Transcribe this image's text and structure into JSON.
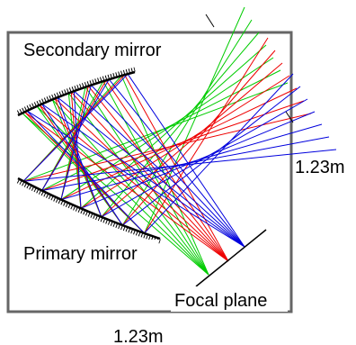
{
  "labels": {
    "secondary_mirror": "Secondary mirror",
    "primary_mirror": "Primary mirror",
    "focal_plane": "Focal plane",
    "width_dimension": "1.23m",
    "height_dimension": "1.23m"
  },
  "colors": {
    "green_rays": "#00cc00",
    "red_rays": "#ee0000",
    "blue_rays": "#0000dd",
    "box_border": "#666666",
    "mirror": "#000000"
  }
}
